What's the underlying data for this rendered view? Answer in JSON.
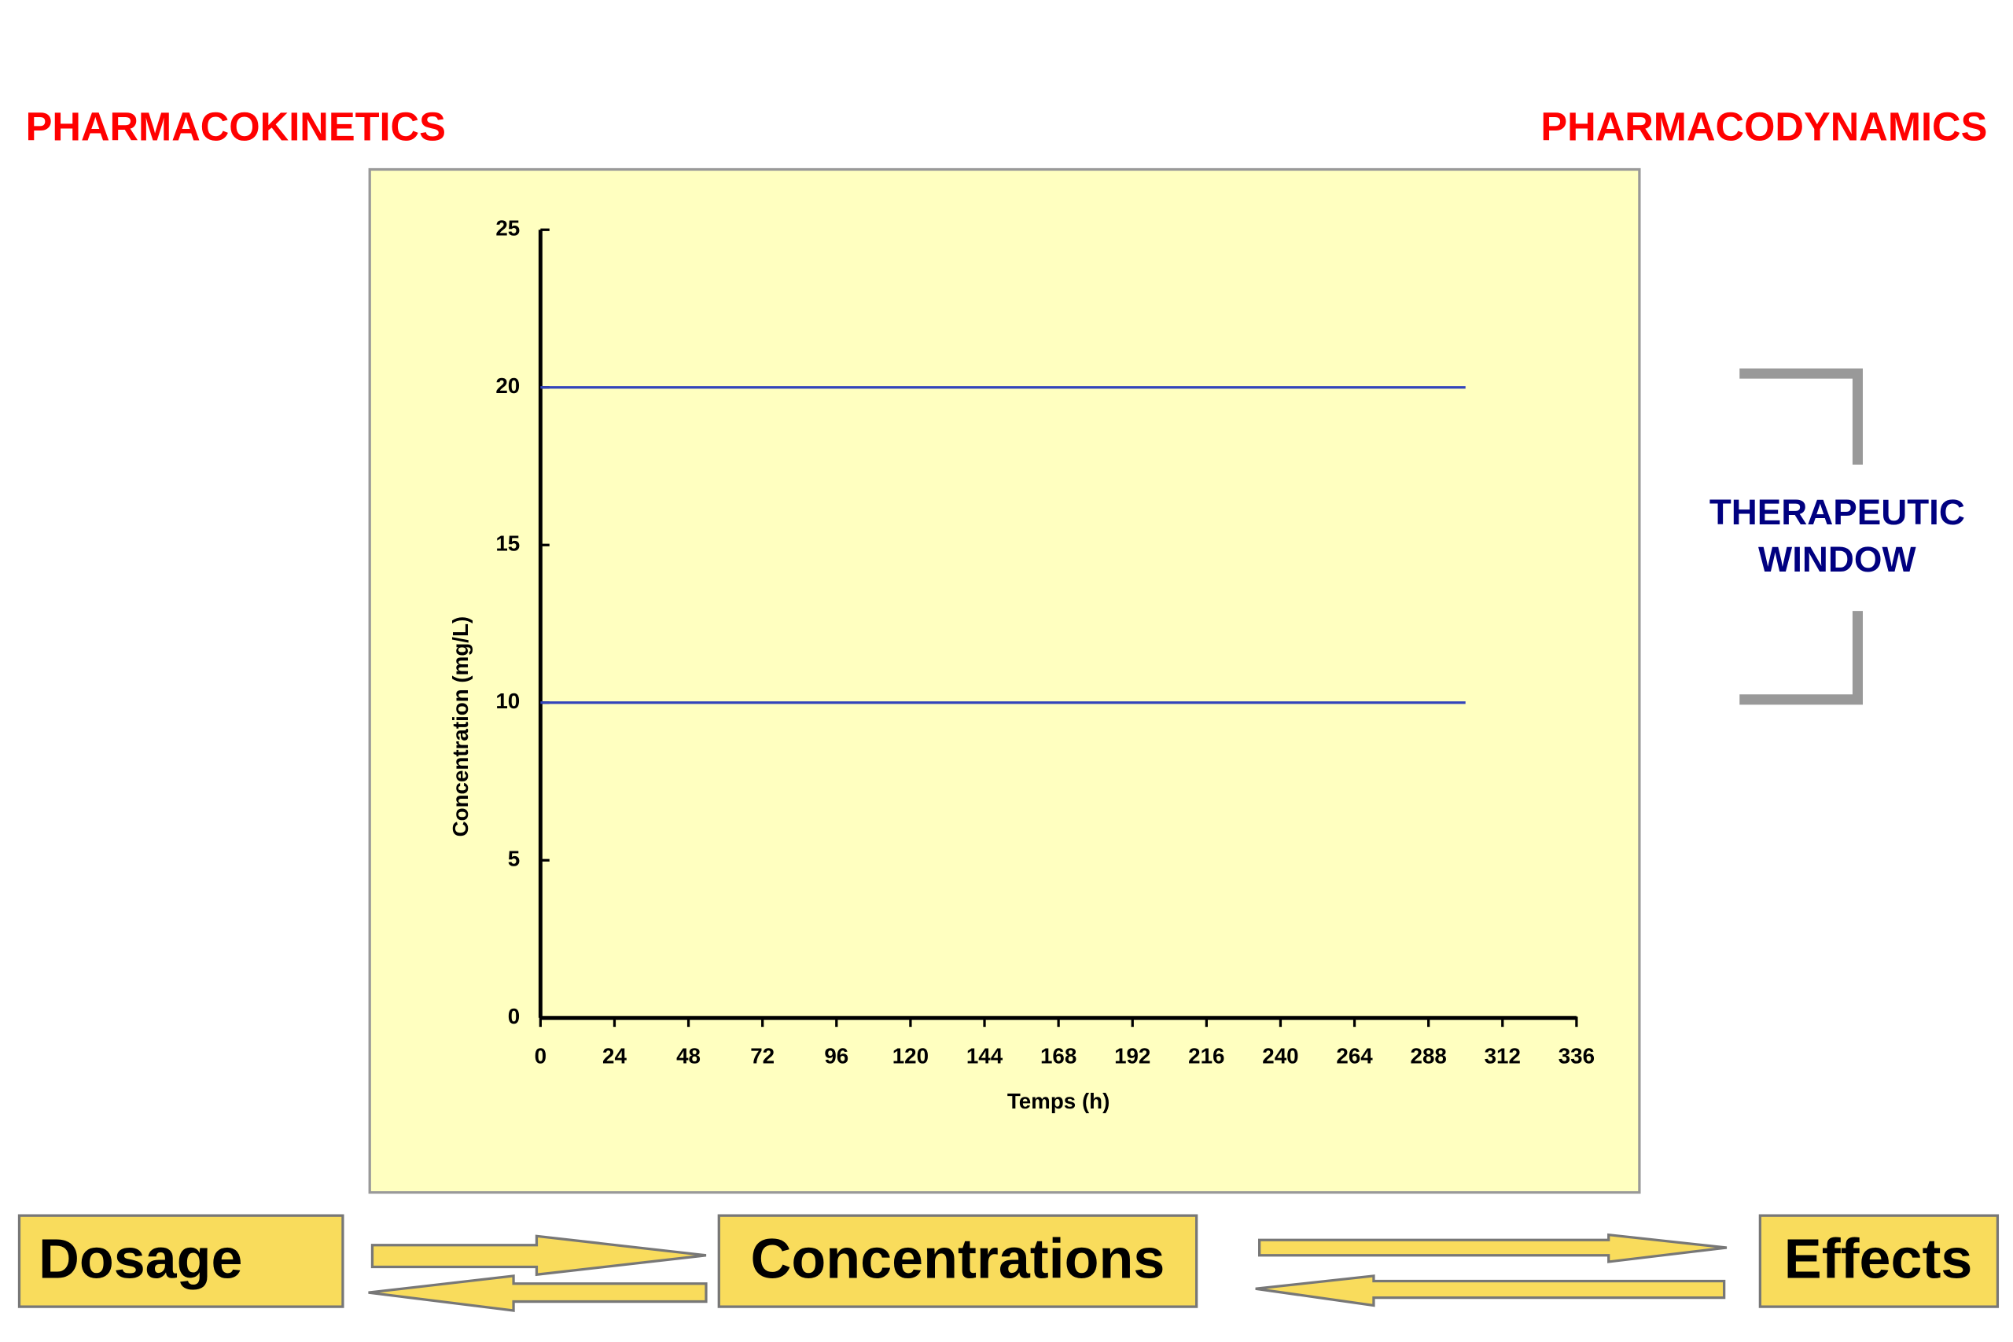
{
  "labels": {
    "left": "PHARMACOKINETICS",
    "right": "PHARMACODYNAMICS",
    "window": [
      "THERAPEUTIC",
      "WINDOW"
    ]
  },
  "boxes": [
    "Dosage",
    "Concentrations",
    "Effects"
  ],
  "chart_data": {
    "type": "line",
    "x_label": "Temps (h)",
    "y_label": "Concentration (mg/L)",
    "x": [
      0,
      300
    ],
    "series": [
      {
        "color": "#3344bb",
        "values": [
          20,
          20
        ]
      },
      {
        "color": "#3344bb",
        "values": [
          10,
          10
        ]
      }
    ],
    "xlim": [
      0,
      336
    ],
    "xticks": [
      0,
      24,
      48,
      72,
      96,
      120,
      144,
      168,
      192,
      216,
      240,
      264,
      288,
      312,
      336
    ],
    "ylim": [
      0,
      25
    ],
    "yticks": [
      0,
      5,
      10,
      15,
      20,
      25
    ]
  }
}
